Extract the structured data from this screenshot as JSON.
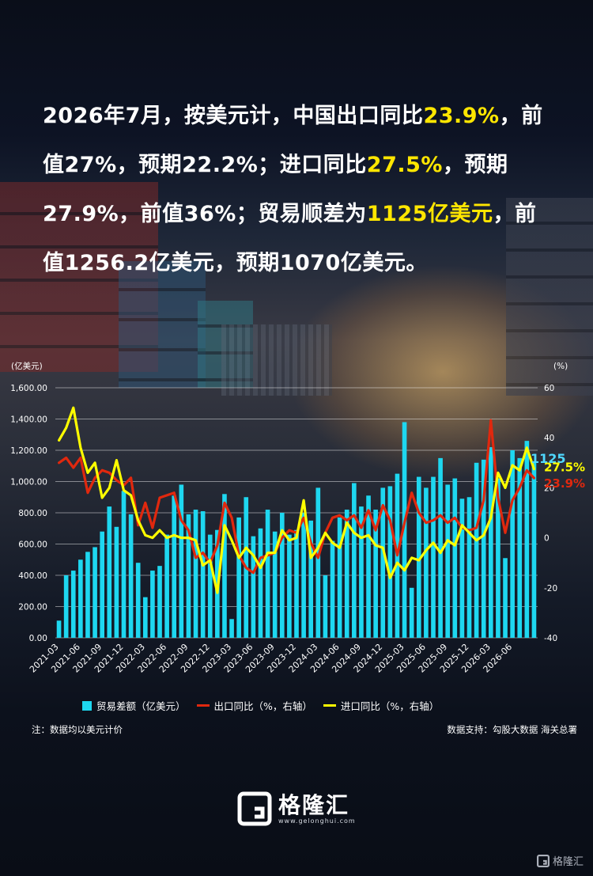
{
  "headline": {
    "p1": "2026年7月，按美元计，中国出口同比",
    "export_yoy": "23.9%",
    "p2": "，前值27%，预期22.2%；进口同比",
    "import_yoy": "27.5%",
    "p3": "，预期27.9%，前值36%；贸易顺差为",
    "surplus": "1125亿美元",
    "p4": "，前值1256.2亿美元，预期1070亿美元。"
  },
  "chart_data": {
    "type": "bar+line",
    "left_axis": {
      "unit": "(亿美元)",
      "range": [
        0,
        1600
      ],
      "ticks": [
        "0.00",
        "200.00",
        "400.00",
        "600.00",
        "800.00",
        "1,000.00",
        "1,200.00",
        "1,400.00",
        "1,600.00"
      ]
    },
    "right_axis": {
      "unit": "(%)",
      "range": [
        -40,
        60
      ],
      "ticks": [
        "-40",
        "-20",
        "0",
        "20",
        "40",
        "60"
      ]
    },
    "x_ticks": [
      "2021-03",
      "2021-06",
      "2021-09",
      "2021-12",
      "2022-03",
      "2022-06",
      "2022-09",
      "2022-12",
      "2023-03",
      "2023-06",
      "2023-09",
      "2023-12",
      "2024-03",
      "2024-06",
      "2024-09",
      "2024-12",
      "2025-03",
      "2025-06",
      "2025-09",
      "2025-12",
      "2026-03",
      "2026-06"
    ],
    "series": [
      {
        "name": "贸易差额（亿美元）",
        "kind": "bar",
        "axis": "left",
        "color": "#1ed7f0",
        "values": [
          110,
          400,
          430,
          500,
          550,
          580,
          680,
          840,
          710,
          940,
          790,
          480,
          260,
          430,
          460,
          660,
          910,
          980,
          790,
          820,
          810,
          660,
          690,
          920,
          120,
          770,
          900,
          650,
          700,
          820,
          680,
          800,
          660,
          690,
          800,
          750,
          960,
          400,
          620,
          770,
          820,
          990,
          840,
          910,
          820,
          960,
          970,
          1050,
          1380,
          320,
          1030,
          960,
          1030,
          1150,
          980,
          1020,
          890,
          900,
          1120,
          1140,
          1220,
          1020,
          510,
          1200,
          1150,
          1260,
          1125
        ]
      },
      {
        "name": "出口同比（%，右轴）",
        "kind": "line",
        "axis": "right",
        "color": "#e0280e",
        "values": [
          30,
          32,
          28,
          32,
          18,
          24,
          27,
          26,
          23,
          21,
          24,
          5,
          14,
          4,
          16,
          17,
          18,
          7,
          3,
          -8,
          -6,
          -10,
          -3,
          14,
          8,
          -7,
          -12,
          -14,
          -8,
          -7,
          -6,
          0,
          3,
          2,
          8,
          -2,
          -8,
          2,
          8,
          9,
          7,
          9,
          4,
          11,
          3,
          13,
          7,
          -7,
          6,
          18,
          10,
          6,
          7,
          9,
          6,
          8,
          4,
          3,
          4,
          15,
          47,
          16,
          2,
          15,
          20,
          27,
          23.9
        ]
      },
      {
        "name": "进口同比（%，右轴）",
        "kind": "line",
        "axis": "right",
        "color": "#ffff00",
        "values": [
          39,
          44,
          52,
          36,
          26,
          30,
          16,
          20,
          31,
          19,
          17,
          7,
          1,
          0,
          3,
          0,
          1,
          0,
          0,
          -1,
          -11,
          -9,
          -22,
          5,
          -1,
          -8,
          -4,
          -7,
          -12,
          -6,
          -6,
          3,
          -1,
          0,
          15,
          -8,
          -4,
          2,
          -2,
          -4,
          6,
          2,
          0,
          1,
          -3,
          -4,
          -16,
          -10,
          -13,
          -8,
          -9,
          -5,
          -2,
          -6,
          -1,
          -3,
          5,
          2,
          -1,
          1,
          8,
          26,
          20,
          29,
          27,
          36,
          27.5
        ]
      }
    ],
    "end_labels": {
      "bar": "1125",
      "export": "23.9%",
      "import": "27.5%"
    },
    "grid": true,
    "legend_position": "bottom"
  },
  "legend": {
    "bar": "贸易差额（亿美元）",
    "export": "出口同比（%，右轴）",
    "import": "进口同比（%，右轴）"
  },
  "note": "注：数据均以美元计价",
  "source": "数据支持：勾股大数据 海关总署",
  "logo": {
    "name": "格隆汇",
    "url": "www.gelonghui.com"
  },
  "watermark": "格隆汇",
  "colors": {
    "bar": "#1ed7f0",
    "export": "#e0280e",
    "import": "#ffff00",
    "highlight": "#ffe600",
    "end_label_bar": "#4fd8ff"
  }
}
